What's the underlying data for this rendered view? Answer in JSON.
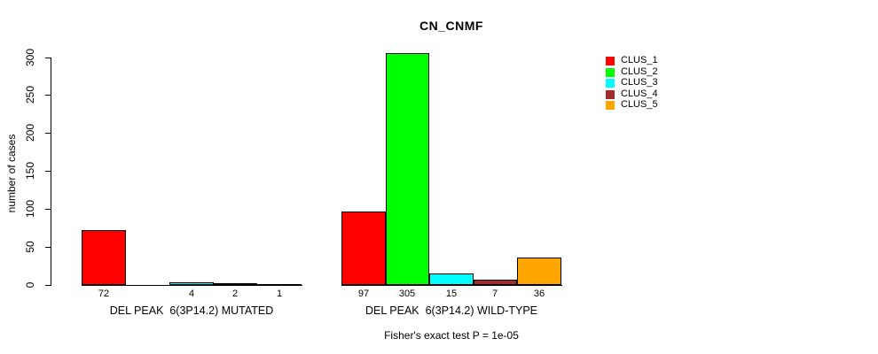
{
  "chart_data": {
    "type": "bar",
    "title": "CN_CNMF",
    "ylabel": "number of cases",
    "xlabel": "",
    "ylim": [
      0,
      300
    ],
    "yticks": [
      0,
      50,
      100,
      150,
      200,
      250,
      300
    ],
    "grid": false,
    "legend_position": "right",
    "categories": [
      "DEL PEAK  6(3P14.2) MUTATED",
      "DEL PEAK  6(3P14.2) WILD-TYPE"
    ],
    "series": [
      {
        "name": "CLUS_1",
        "color": "#FF0000",
        "values": [
          72,
          97
        ]
      },
      {
        "name": "CLUS_2",
        "color": "#00FF00",
        "values": [
          0,
          305
        ]
      },
      {
        "name": "CLUS_3",
        "color": "#00FFFF",
        "values": [
          4,
          15
        ]
      },
      {
        "name": "CLUS_4",
        "color": "#A52A2A",
        "values": [
          2,
          7
        ]
      },
      {
        "name": "CLUS_5",
        "color": "#FFA500",
        "values": [
          1,
          36
        ]
      }
    ],
    "bar_value_labels": [
      [
        "72",
        "",
        "4",
        "2",
        "1"
      ],
      [
        "97",
        "305",
        "15",
        "7",
        "36"
      ]
    ],
    "footnote": "Fisher's exact test P = 1e-05",
    "colors": {
      "background": "#FFFFFF",
      "axis": "#000000",
      "text": "#000000"
    }
  }
}
